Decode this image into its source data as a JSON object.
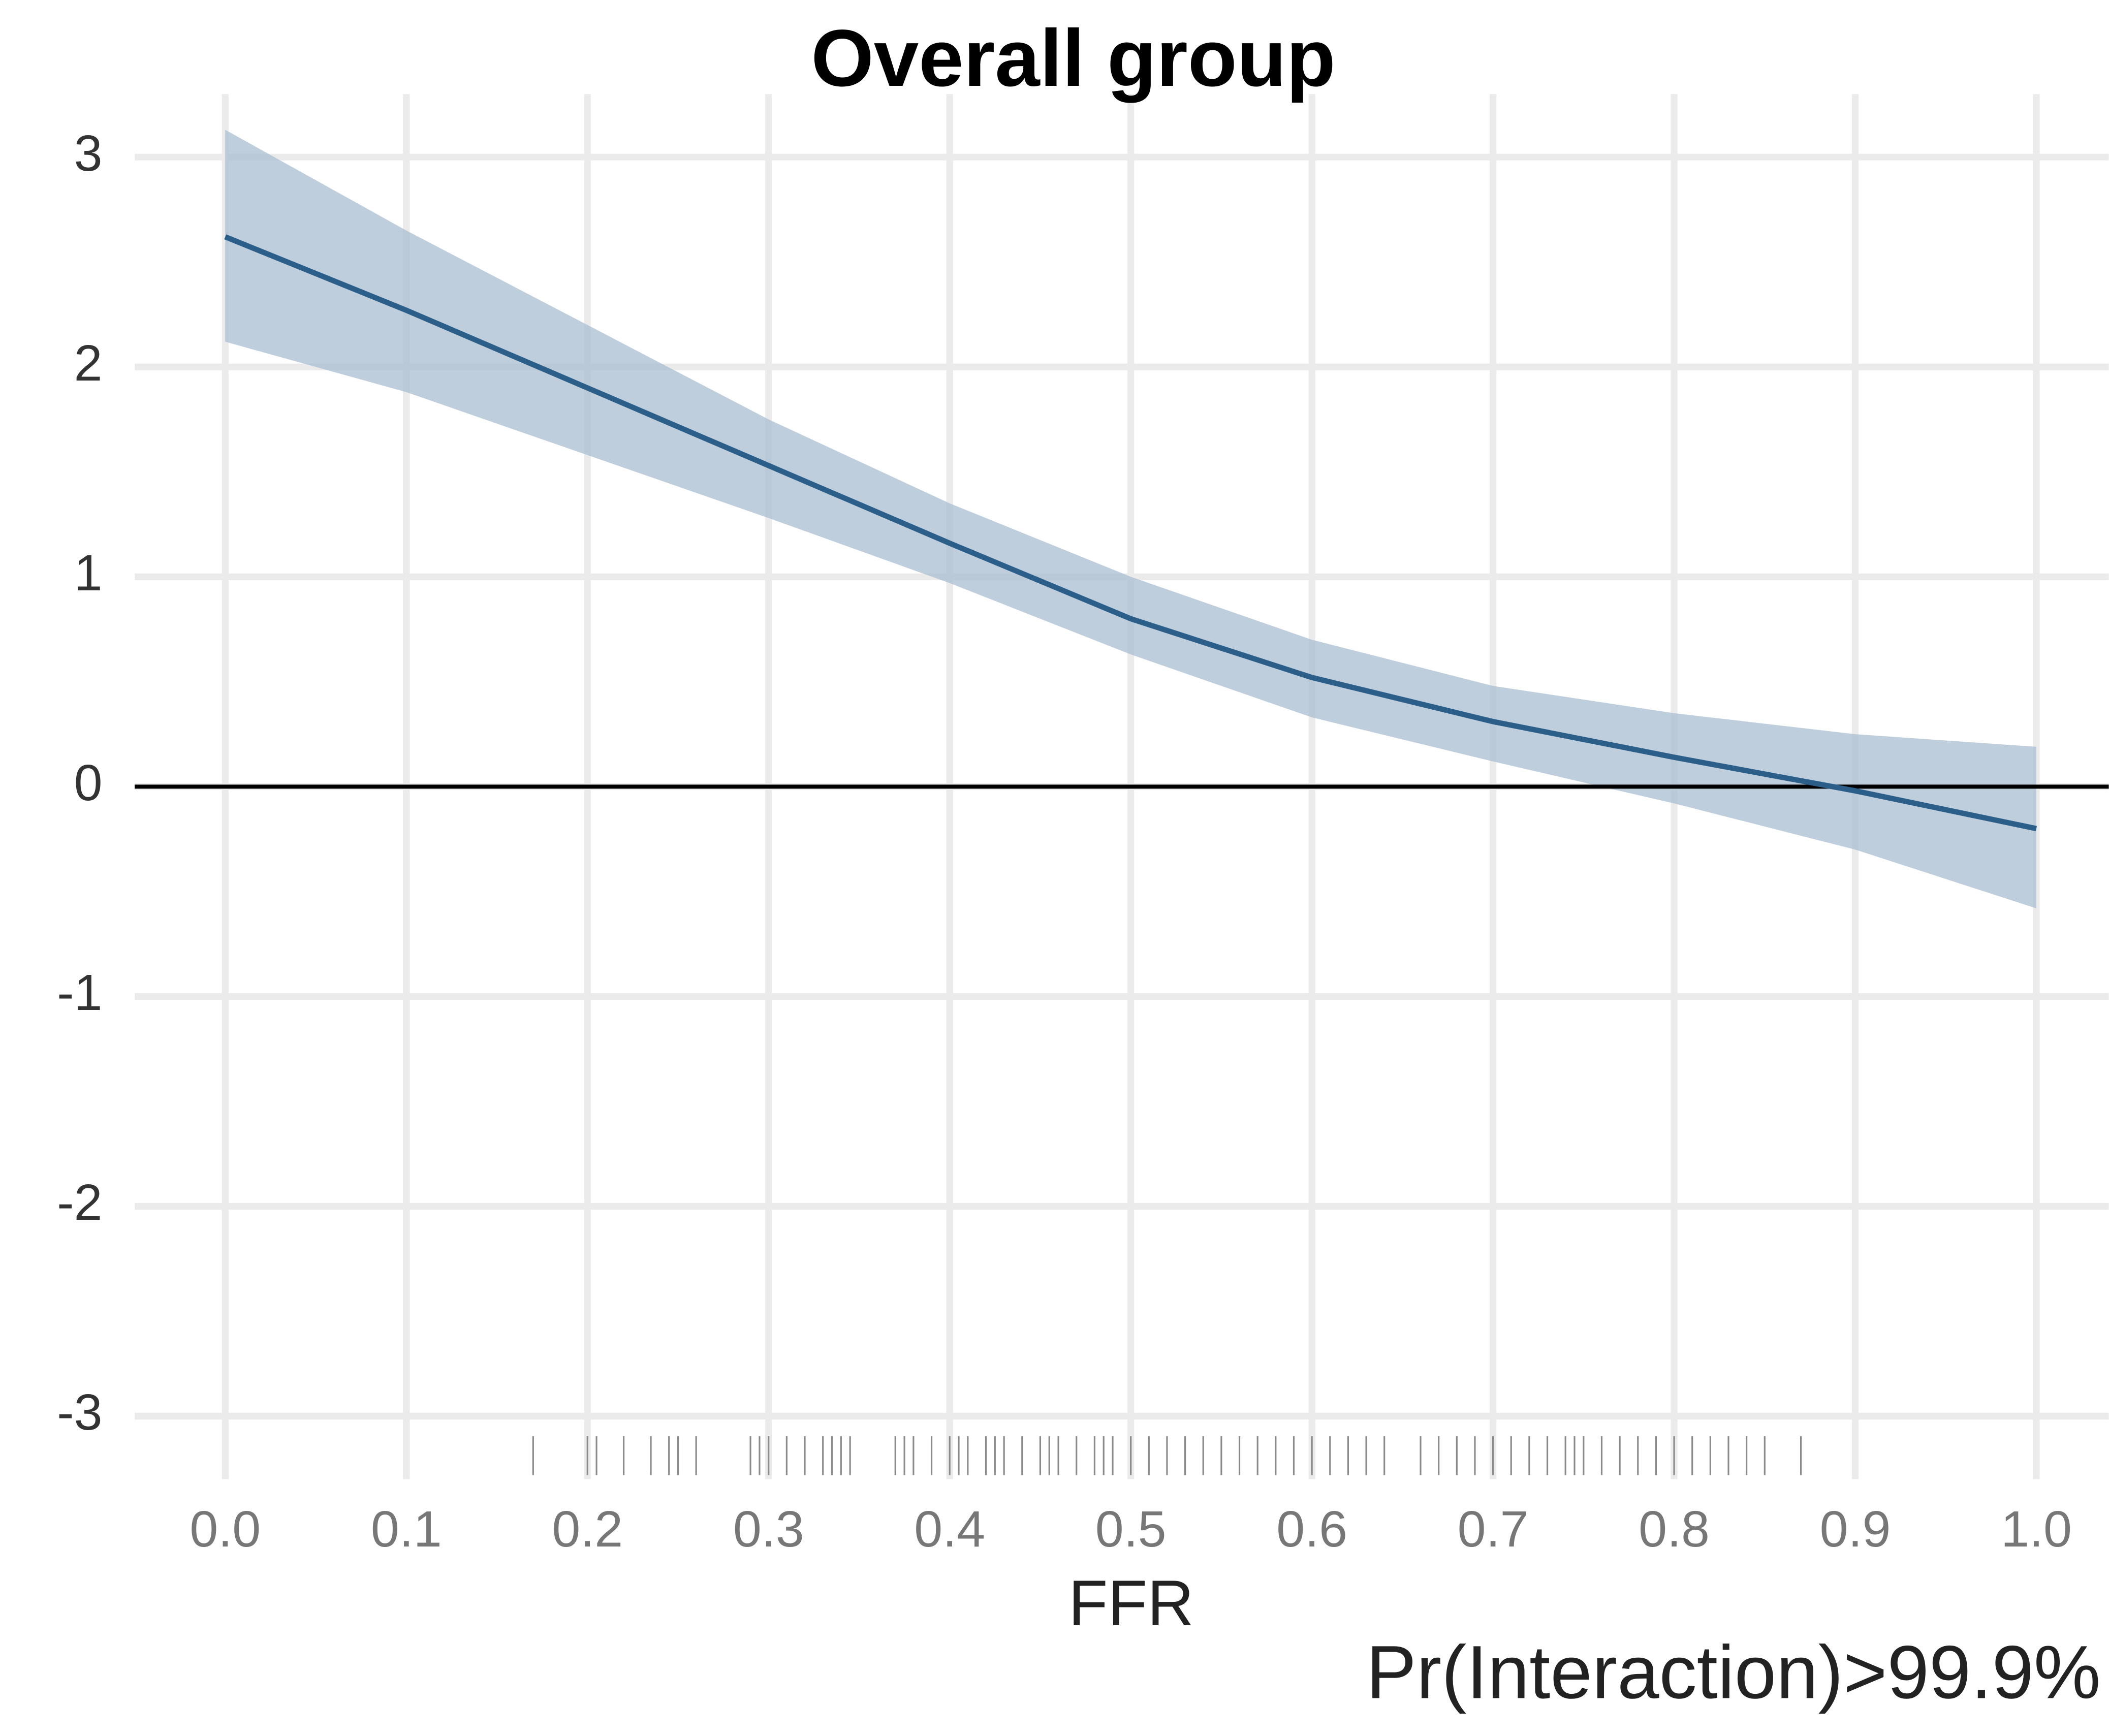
{
  "chart_data": {
    "type": "line",
    "title": "Overall group",
    "x_label": "FFR",
    "annotation": "Pr(Interaction)>99.9%",
    "x": [
      0,
      0.1,
      0.2,
      0.3,
      0.4,
      0.5,
      0.6,
      0.7,
      0.8,
      0.9,
      1.0
    ],
    "values": [
      2.62,
      2.27,
      1.9,
      1.53,
      1.16,
      0.8,
      0.52,
      0.31,
      0.14,
      -0.02,
      -0.2
    ],
    "upper": [
      3.13,
      2.65,
      2.2,
      1.75,
      1.35,
      1.0,
      0.7,
      0.48,
      0.35,
      0.25,
      0.19
    ],
    "lower": [
      2.12,
      1.88,
      1.58,
      1.28,
      0.97,
      0.63,
      0.33,
      0.12,
      -0.08,
      -0.3,
      -0.58
    ],
    "color": "#2b5f8a",
    "band_color": "#a9bdd1",
    "rug": [
      0.17,
      0.2,
      0.205,
      0.22,
      0.235,
      0.245,
      0.25,
      0.26,
      0.29,
      0.295,
      0.3,
      0.31,
      0.32,
      0.33,
      0.335,
      0.34,
      0.345,
      0.37,
      0.375,
      0.38,
      0.39,
      0.4,
      0.405,
      0.41,
      0.42,
      0.425,
      0.43,
      0.44,
      0.45,
      0.455,
      0.46,
      0.47,
      0.48,
      0.485,
      0.49,
      0.5,
      0.51,
      0.52,
      0.53,
      0.54,
      0.55,
      0.56,
      0.57,
      0.58,
      0.59,
      0.6,
      0.61,
      0.62,
      0.63,
      0.64,
      0.66,
      0.67,
      0.68,
      0.69,
      0.7,
      0.71,
      0.72,
      0.73,
      0.74,
      0.745,
      0.75,
      0.76,
      0.77,
      0.78,
      0.79,
      0.8,
      0.81,
      0.82,
      0.83,
      0.84,
      0.85,
      0.87
    ],
    "rug_color": "#8a8a8a",
    "reference_line": 0,
    "xlim": [
      -0.05,
      1.04
    ],
    "ylim": [
      -3.3,
      3.3
    ],
    "xticks": [
      {
        "value": 0,
        "label": "0.0"
      },
      0.1,
      0.2,
      0.3,
      0.4,
      0.5,
      0.6,
      0.7,
      0.8,
      0.9,
      {
        "value": 1,
        "label": "1.0"
      }
    ],
    "yticks": [
      -3,
      -2,
      -1,
      0,
      1,
      2,
      3
    ],
    "grid": true
  }
}
